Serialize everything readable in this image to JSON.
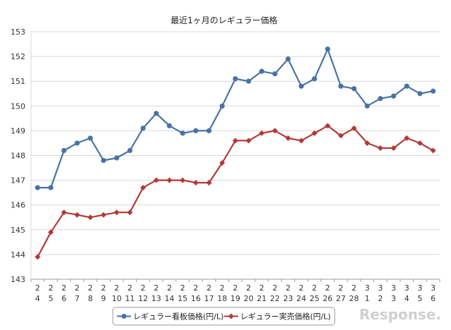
{
  "chart_data": {
    "type": "line",
    "title": "最近1ヶ月のレギュラー価格",
    "xlabel": "",
    "ylabel": "",
    "ylim": [
      143,
      153
    ],
    "yticks": [
      143,
      144,
      145,
      146,
      147,
      148,
      149,
      150,
      151,
      152,
      153
    ],
    "grid": true,
    "legend_position": "bottom",
    "categories": [
      [
        "2",
        "4"
      ],
      [
        "2",
        "5"
      ],
      [
        "2",
        "6"
      ],
      [
        "2",
        "7"
      ],
      [
        "2",
        "8"
      ],
      [
        "2",
        "9"
      ],
      [
        "2",
        "10"
      ],
      [
        "2",
        "11"
      ],
      [
        "2",
        "12"
      ],
      [
        "2",
        "13"
      ],
      [
        "2",
        "14"
      ],
      [
        "2",
        "15"
      ],
      [
        "2",
        "16"
      ],
      [
        "2",
        "17"
      ],
      [
        "2",
        "18"
      ],
      [
        "2",
        "19"
      ],
      [
        "2",
        "20"
      ],
      [
        "2",
        "21"
      ],
      [
        "2",
        "22"
      ],
      [
        "2",
        "23"
      ],
      [
        "2",
        "24"
      ],
      [
        "2",
        "25"
      ],
      [
        "2",
        "26"
      ],
      [
        "2",
        "27"
      ],
      [
        "2",
        "28"
      ],
      [
        "3",
        "1"
      ],
      [
        "3",
        "2"
      ],
      [
        "3",
        "3"
      ],
      [
        "3",
        "4"
      ],
      [
        "3",
        "5"
      ],
      [
        "3",
        "6"
      ]
    ],
    "series": [
      {
        "name": "レギュラー看板価格(円/L)",
        "color": "#4a72a6",
        "marker": "circle",
        "values": [
          146.7,
          146.7,
          148.2,
          148.5,
          148.7,
          147.8,
          147.9,
          148.2,
          149.1,
          149.7,
          149.2,
          148.9,
          149.0,
          149.0,
          150.0,
          151.1,
          151.0,
          151.4,
          151.3,
          151.9,
          150.8,
          151.1,
          152.3,
          150.8,
          150.7,
          150.0,
          150.3,
          150.4,
          150.8,
          150.5,
          150.6
        ]
      },
      {
        "name": "レギュラー実売価格(円/L)",
        "color": "#b13a36",
        "marker": "diamond",
        "values": [
          143.9,
          144.9,
          145.7,
          145.6,
          145.5,
          145.6,
          145.7,
          145.7,
          146.7,
          147.0,
          147.0,
          147.0,
          146.9,
          146.9,
          147.7,
          148.6,
          148.6,
          148.9,
          149.0,
          148.7,
          148.6,
          148.9,
          149.2,
          148.8,
          149.1,
          148.5,
          148.3,
          148.3,
          148.7,
          148.5,
          148.2
        ]
      }
    ]
  },
  "watermark": "Response."
}
